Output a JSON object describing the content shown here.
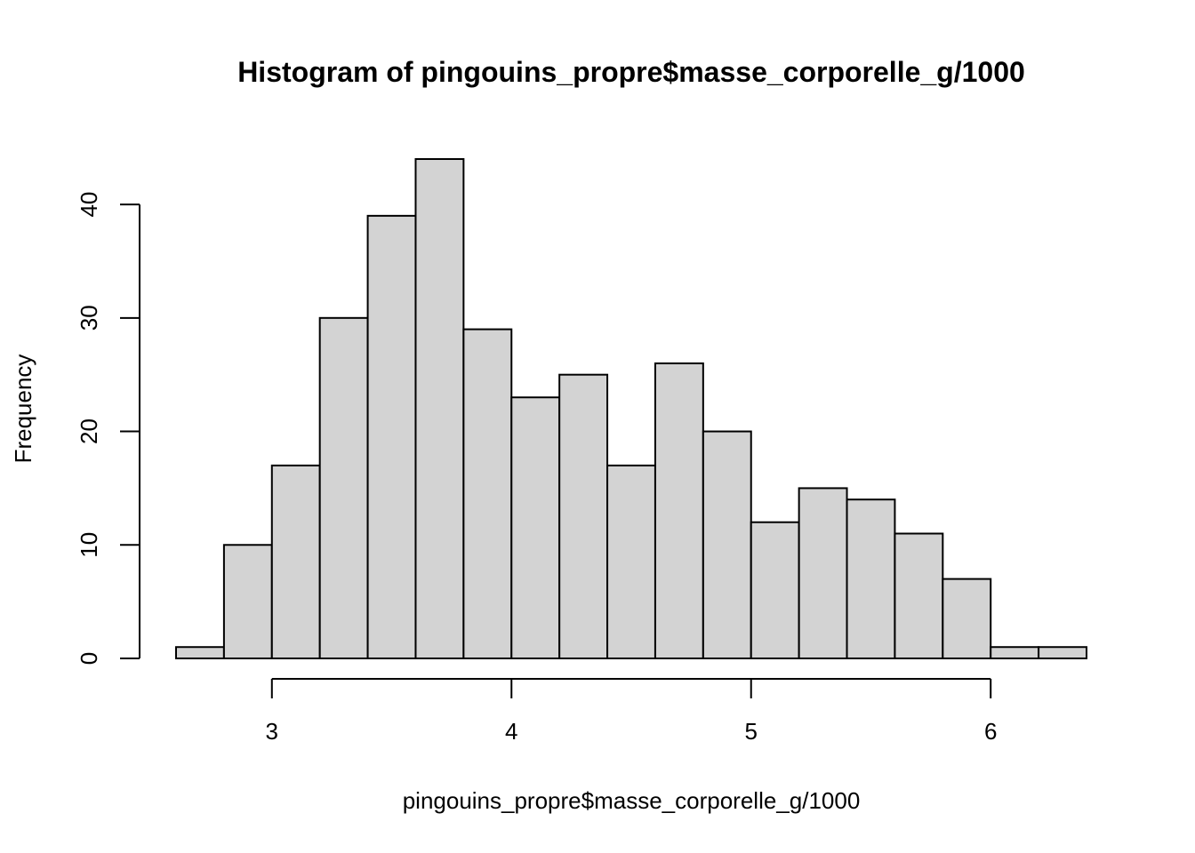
{
  "chart_data": {
    "type": "bar",
    "title": "Histogram of pingouins_propre$masse_corporelle_g/1000",
    "xlabel": "pingouins_propre$masse_corporelle_g/1000",
    "ylabel": "Frequency",
    "bin_edges": [
      2.6,
      2.8,
      3.0,
      3.2,
      3.4,
      3.6,
      3.8,
      4.0,
      4.2,
      4.4,
      4.6,
      4.8,
      5.0,
      5.2,
      5.4,
      5.6,
      5.8,
      6.0,
      6.2,
      6.4
    ],
    "counts": [
      1,
      10,
      17,
      30,
      39,
      44,
      29,
      23,
      25,
      17,
      26,
      20,
      12,
      15,
      14,
      11,
      7,
      1,
      1
    ],
    "xticks": [
      3,
      4,
      5,
      6
    ],
    "yticks": [
      0,
      10,
      20,
      30,
      40
    ],
    "xlim": [
      2.6,
      6.4
    ],
    "ylim": [
      0,
      44
    ],
    "grid": false,
    "bar_color": "#d3d3d3",
    "bar_border_color": "#000000"
  }
}
